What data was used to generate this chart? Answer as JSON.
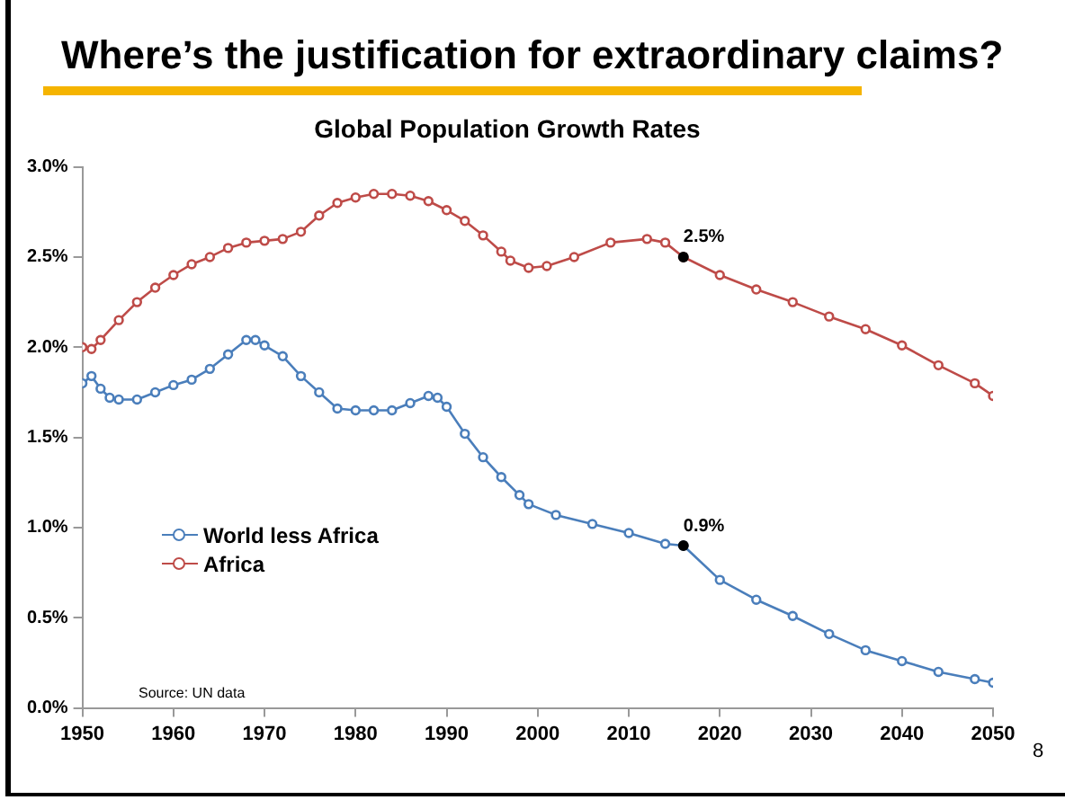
{
  "chart_data": {
    "type": "line",
    "title": "Where’s the justification for extraordinary claims?",
    "subtitle": "Global Population Growth Rates",
    "xlim": [
      1950,
      2050
    ],
    "xticks": [
      1950,
      1960,
      1970,
      1980,
      1990,
      2000,
      2010,
      2020,
      2030,
      2040,
      2050
    ],
    "ylim": [
      0,
      3
    ],
    "yticks": [
      {
        "value": 0,
        "label": "0.0%"
      },
      {
        "value": 0.5,
        "label": "0.5%"
      },
      {
        "value": 1,
        "label": "1.0%"
      },
      {
        "value": 1.5,
        "label": "1.5%"
      },
      {
        "value": 2,
        "label": "2.0%"
      },
      {
        "value": 2.5,
        "label": "2.5%"
      },
      {
        "value": 3,
        "label": "3.0%"
      }
    ],
    "grid": false,
    "legend": "left",
    "marker": "circle",
    "line_style": "solid",
    "series": [
      {
        "name": "World less Africa",
        "color": "#4a7ebb",
        "x": [
          1950,
          1951,
          1952,
          1953,
          1954,
          1956,
          1958,
          1960,
          1962,
          1964,
          1966,
          1968,
          1969,
          1970,
          1972,
          1974,
          1976,
          1978,
          1980,
          1982,
          1984,
          1986,
          1988,
          1989,
          1990,
          1992,
          1994,
          1996,
          1998,
          1999,
          2002,
          2006,
          2010,
          2014,
          2016,
          2020,
          2024,
          2028,
          2032,
          2036,
          2040,
          2044,
          2048,
          2050
        ],
        "values": [
          1.8,
          1.84,
          1.77,
          1.72,
          1.71,
          1.71,
          1.75,
          1.79,
          1.82,
          1.88,
          1.96,
          2.04,
          2.04,
          2.01,
          1.95,
          1.84,
          1.75,
          1.66,
          1.65,
          1.65,
          1.65,
          1.69,
          1.73,
          1.72,
          1.67,
          1.52,
          1.39,
          1.28,
          1.18,
          1.13,
          1.07,
          1.02,
          0.97,
          0.91,
          0.9,
          0.71,
          0.6,
          0.51,
          0.41,
          0.32,
          0.26,
          0.2,
          0.16,
          0.14
        ]
      },
      {
        "name": "Africa",
        "color": "#be4b48",
        "x": [
          1950,
          1951,
          1952,
          1954,
          1956,
          1958,
          1960,
          1962,
          1964,
          1966,
          1968,
          1970,
          1972,
          1974,
          1976,
          1978,
          1980,
          1982,
          1984,
          1986,
          1988,
          1990,
          1992,
          1994,
          1996,
          1997,
          1999,
          2001,
          2004,
          2008,
          2012,
          2014,
          2016,
          2020,
          2024,
          2028,
          2032,
          2036,
          2040,
          2044,
          2048,
          2050
        ],
        "values": [
          2.0,
          1.99,
          2.04,
          2.15,
          2.25,
          2.33,
          2.4,
          2.46,
          2.5,
          2.55,
          2.58,
          2.59,
          2.6,
          2.64,
          2.73,
          2.8,
          2.83,
          2.85,
          2.85,
          2.84,
          2.81,
          2.76,
          2.7,
          2.62,
          2.53,
          2.48,
          2.44,
          2.45,
          2.5,
          2.58,
          2.6,
          2.58,
          2.5,
          2.4,
          2.32,
          2.25,
          2.17,
          2.1,
          2.01,
          1.9,
          1.8,
          1.73
        ]
      }
    ],
    "annotations": [
      {
        "text": "2.5%",
        "x": 2016,
        "y": 2.5
      },
      {
        "text": "0.9%",
        "x": 2016,
        "y": 0.9
      },
      "Source: UN data",
      "8"
    ]
  }
}
